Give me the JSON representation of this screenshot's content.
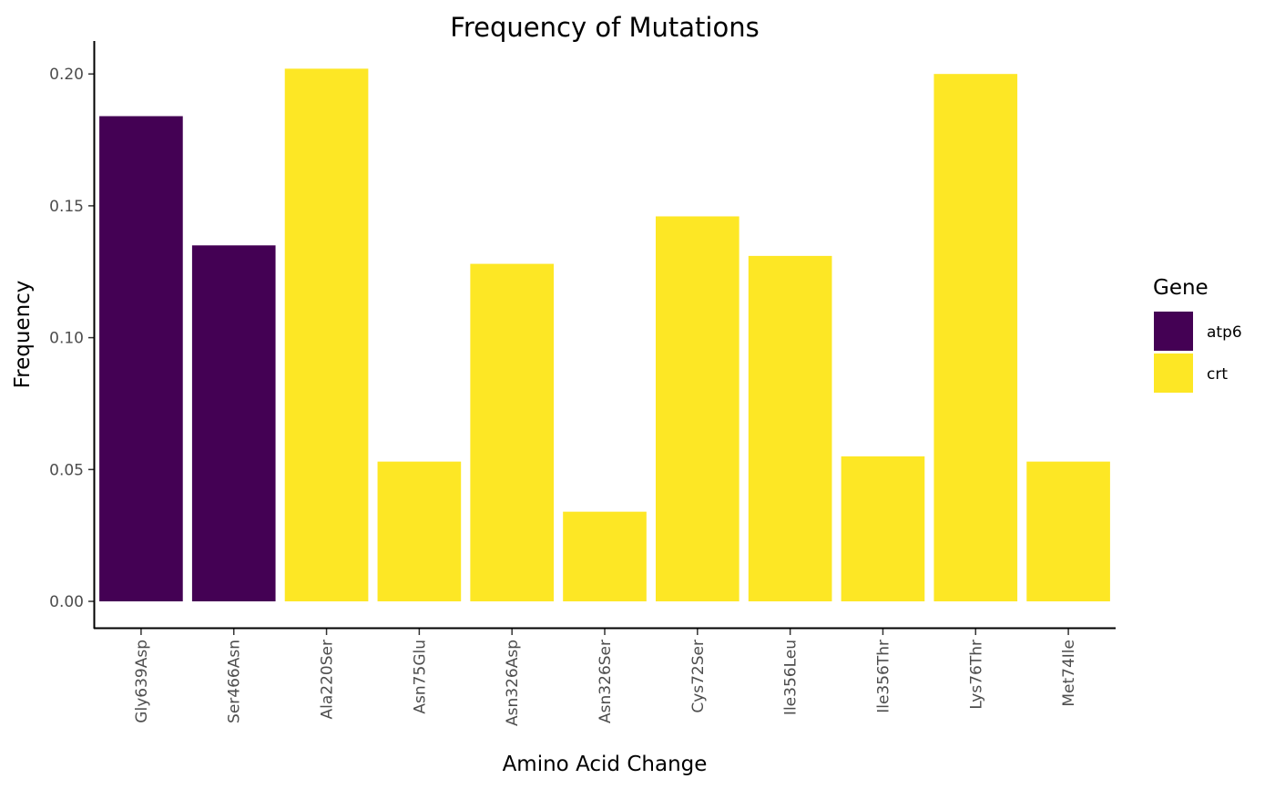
{
  "chart_data": {
    "type": "bar",
    "title": "Frequency of Mutations",
    "xlabel": "Amino Acid Change",
    "ylabel": "Frequency",
    "ylim": [
      -0.01,
      0.2125
    ],
    "yticks": [
      "0.00",
      "0.05",
      "0.10",
      "0.15",
      "0.20"
    ],
    "grid": false,
    "legend_position": "right",
    "legend_title": "Gene",
    "categories": [
      "Gly639Asp",
      "Ser466Asn",
      "Ala220Ser",
      "Asn75Glu",
      "Asn326Asp",
      "Asn326Ser",
      "Cys72Ser",
      "Ile356Leu",
      "Ile356Thr",
      "Lys76Thr",
      "Met74Ile"
    ],
    "values": [
      0.184,
      0.135,
      0.202,
      0.053,
      0.128,
      0.034,
      0.146,
      0.131,
      0.055,
      0.2,
      0.053
    ],
    "groups": [
      "atp6",
      "atp6",
      "crt",
      "crt",
      "crt",
      "crt",
      "crt",
      "crt",
      "crt",
      "crt",
      "crt"
    ],
    "series": [
      {
        "name": "atp6",
        "color": "#440154"
      },
      {
        "name": "crt",
        "color": "#FDE725"
      }
    ]
  }
}
